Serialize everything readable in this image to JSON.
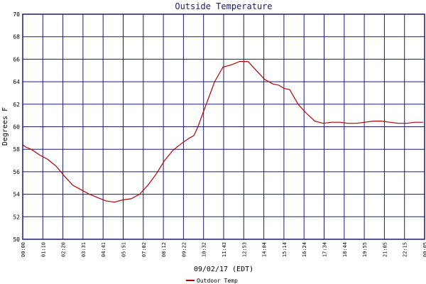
{
  "chart_data": {
    "type": "line",
    "title": "Outside Temperature",
    "xlabel": "09/02/17 (EDT)",
    "ylabel": "Degrees F",
    "ylim": [
      50,
      70
    ],
    "yticks": [
      "50",
      "52",
      "54",
      "56",
      "58",
      "60",
      "62",
      "64",
      "66",
      "68",
      "70"
    ],
    "xticks": [
      "00:00",
      "01:10",
      "02:20",
      "03:31",
      "04:41",
      "05:51",
      "07:02",
      "08:12",
      "09:22",
      "10:32",
      "11:43",
      "12:53",
      "14:04",
      "15:14",
      "16:24",
      "17:34",
      "18:44",
      "19:55",
      "21:05",
      "22:15",
      "00:05"
    ],
    "xlim_minutes": [
      0,
      1445
    ],
    "grid": true,
    "series": [
      {
        "name": "Outdoor Temp",
        "color": "#b00000",
        "x_minutes": [
          0,
          10,
          30,
          60,
          90,
          120,
          150,
          180,
          210,
          240,
          270,
          300,
          330,
          360,
          390,
          420,
          450,
          480,
          510,
          540,
          570,
          600,
          615,
          630,
          645,
          660,
          690,
          720,
          750,
          780,
          810,
          840,
          870,
          900,
          920,
          940,
          960,
          990,
          1020,
          1050,
          1080,
          1110,
          1140,
          1170,
          1200,
          1230,
          1260,
          1290,
          1320,
          1350,
          1380,
          1410,
          1440
        ],
        "values": [
          58.4,
          58.2,
          58.0,
          57.5,
          57.1,
          56.5,
          55.6,
          54.8,
          54.4,
          54.0,
          53.7,
          53.4,
          53.3,
          53.5,
          53.6,
          54.0,
          54.8,
          55.8,
          57.0,
          57.9,
          58.5,
          59.0,
          59.2,
          60.0,
          61.0,
          62.0,
          64.0,
          65.3,
          65.5,
          65.8,
          65.8,
          65.0,
          64.2,
          63.8,
          63.7,
          63.4,
          63.3,
          62.0,
          61.2,
          60.5,
          60.3,
          60.4,
          60.4,
          60.3,
          60.3,
          60.4,
          60.5,
          60.5,
          60.4,
          60.3,
          60.3,
          60.4,
          60.4
        ]
      }
    ]
  }
}
